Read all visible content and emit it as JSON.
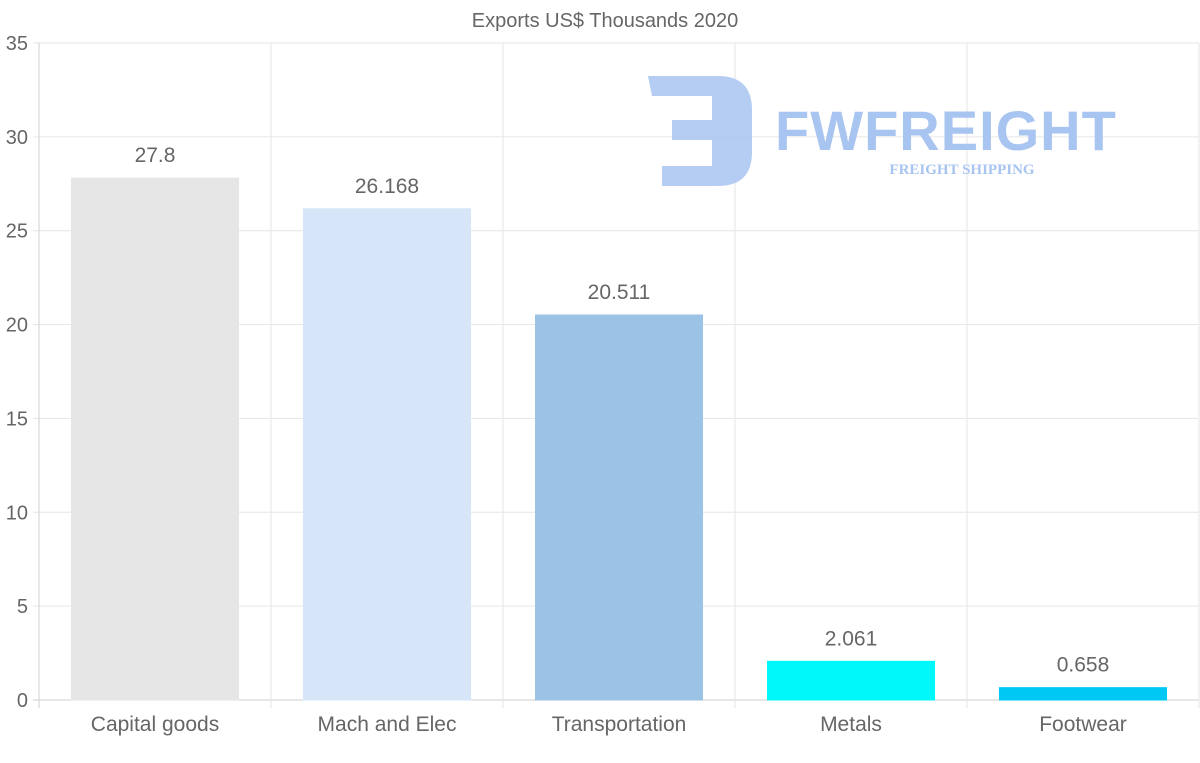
{
  "chart_data": {
    "type": "bar",
    "title": "Exports US$ Thousands 2020",
    "categories": [
      "Capital goods",
      "Mach and Elec",
      "Transportation",
      "Metals",
      "Footwear"
    ],
    "values": [
      27.8,
      26.168,
      20.511,
      2.061,
      0.658
    ],
    "value_labels": [
      "27.8",
      "26.168",
      "20.511",
      "2.061",
      "0.658"
    ],
    "bar_colors": [
      "#e6e6e6",
      "#d6e6f8",
      "#9cc3e6",
      "#00f8fa",
      "#00c8f5"
    ],
    "ylim": [
      0,
      35
    ],
    "yticks": [
      0,
      5,
      10,
      15,
      20,
      25,
      30,
      35
    ],
    "xlabel": "",
    "ylabel": "",
    "grid": true
  },
  "watermark": {
    "brand": "FWFREIGHT",
    "tagline": "FREIGHT SHIPPING",
    "color": "#a8c4f0"
  }
}
